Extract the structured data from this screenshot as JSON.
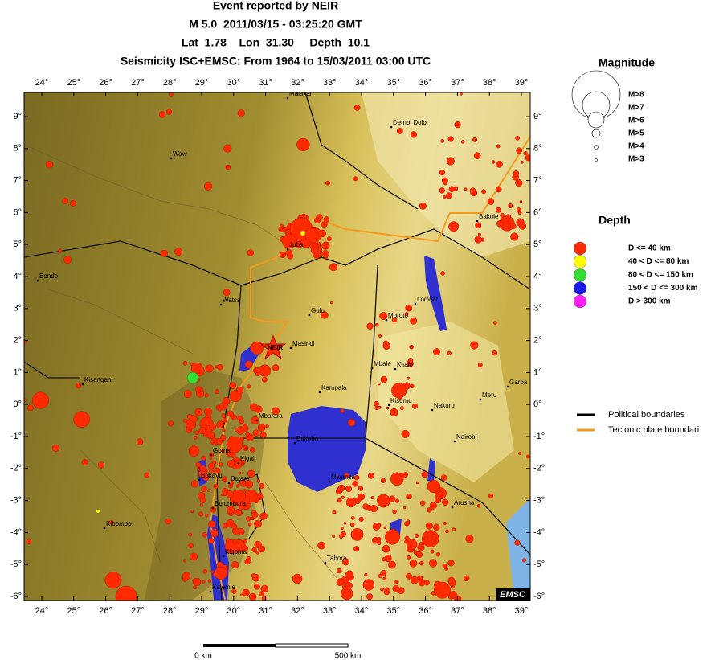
{
  "header": {
    "lines": [
      "Event reported by NEIR",
      "M 5.0  2011/03/15 - 03:25:20 GMT",
      "Lat  1.78    Lon  31.30     Depth  10.1",
      "Seismicity ISC+EMSC: From 1964 to 15/03/2011 03:00 UTC"
    ]
  },
  "map": {
    "lon_labels": [
      "24°",
      "25°",
      "26°",
      "27°",
      "28°",
      "29°",
      "30°",
      "31°",
      "32°",
      "33°",
      "34°",
      "35°",
      "36°",
      "37°",
      "38°",
      "39°"
    ],
    "lat_labels": [
      "9°",
      "8°",
      "7°",
      "6°",
      "5°",
      "4°",
      "3°",
      "2°",
      "1°",
      "0°",
      "-1°",
      "-2°",
      "-3°",
      "-4°",
      "-5°",
      "-6°"
    ],
    "places": [
      "Malakal",
      "Waw",
      "Dembi Dolo",
      "Bondo",
      "Juba",
      "Watsa",
      "Gulu",
      "Lodwar",
      "Moroto",
      "Masindi",
      "Kisangani",
      "Mbale",
      "Kitale",
      "Kampala",
      "Kisumu",
      "Nakuru",
      "Meru",
      "Garba",
      "Mbarara",
      "Bukoba",
      "Nairobi",
      "Goma",
      "Kigali",
      "Bukavu",
      "Butare",
      "Mwanza",
      "Arusha",
      "Bujumbura",
      "Kibombo",
      "Kigoma",
      "Tabora",
      "Kalemie",
      "Bakole"
    ],
    "event_label": "NEIR",
    "logo": "EMSC"
  },
  "legend": {
    "magnitude": {
      "title": "Magnitude",
      "items": [
        "M>8",
        "M>7",
        "M>6",
        "M>5",
        "M>4",
        "M>3"
      ]
    },
    "depth": {
      "title": "Depth",
      "items": [
        "D <= 40 km",
        "40 < D <= 80 km",
        "80 < D <= 150 km",
        "150 < D <= 300 km",
        "D > 300 km"
      ]
    },
    "boundaries": [
      "Political boundaries",
      "Tectonic plate boundari"
    ]
  },
  "scale": {
    "start": "0 km",
    "end": "500 km"
  }
}
